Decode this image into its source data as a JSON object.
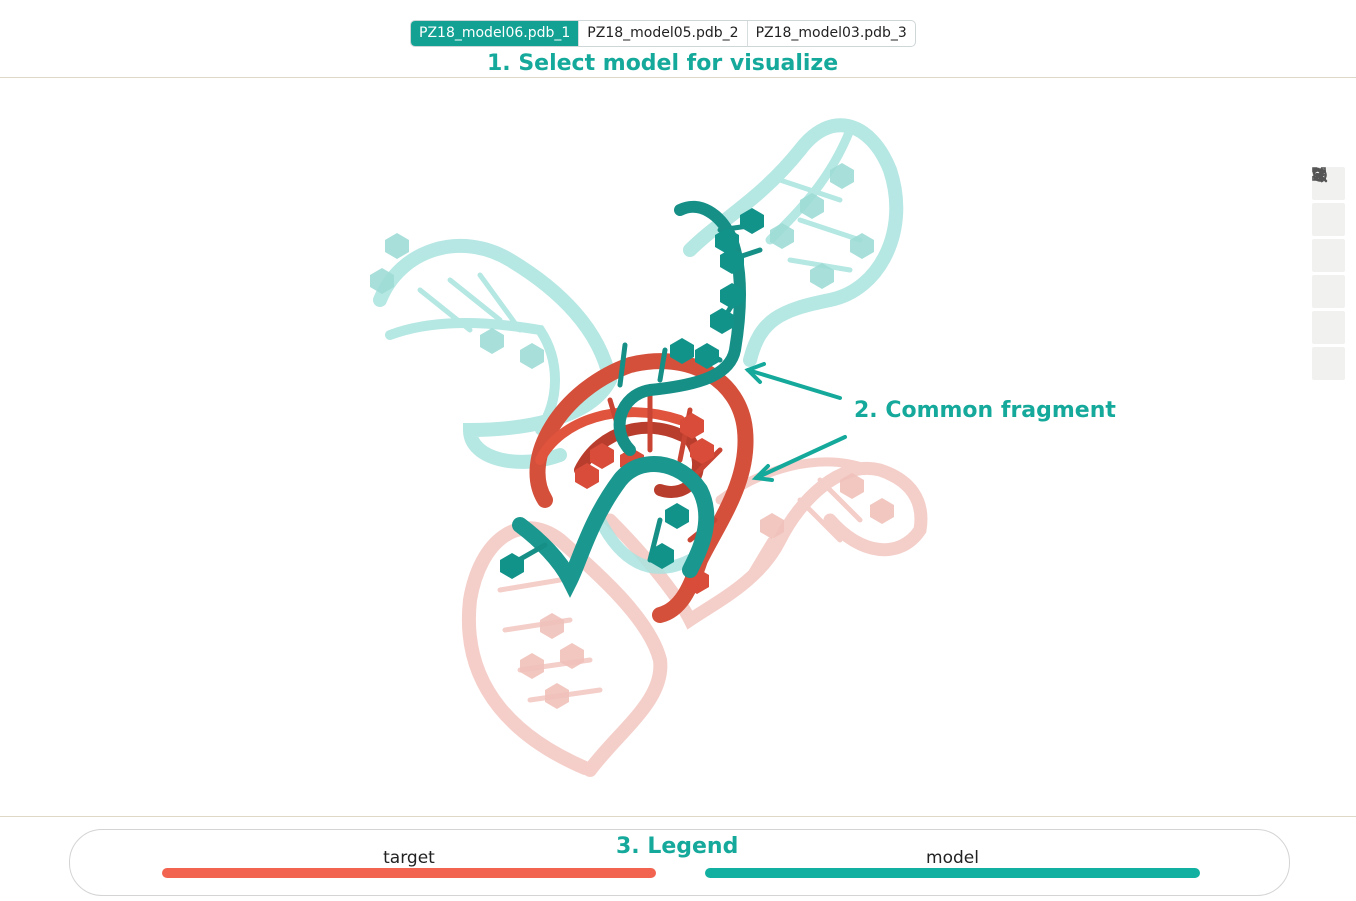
{
  "tabs": [
    {
      "label": "PZ18_model06.pdb_1",
      "active": true
    },
    {
      "label": "PZ18_model05.pdb_2",
      "active": false
    },
    {
      "label": "PZ18_model03.pdb_3",
      "active": false
    }
  ],
  "annotations": {
    "select_model": "1. Select model for visualize",
    "common_fragment": "2. Common fragment",
    "legend": "3. Legend"
  },
  "toolbar": [
    {
      "icon": "refresh-icon"
    },
    {
      "icon": "spin-icon"
    },
    {
      "icon": "wrench-icon"
    },
    {
      "icon": "fullscreen-icon"
    },
    {
      "icon": "sliders-icon"
    },
    {
      "icon": "pointer-icon"
    }
  ],
  "legend": {
    "items": [
      {
        "label": "target",
        "color": "#f26450"
      },
      {
        "label": "model",
        "color": "#12b0a1"
      }
    ]
  },
  "colors": {
    "accent": "#12a193",
    "target": "#e0533d",
    "model": "#168f87",
    "target_faded": "#f3c6c0",
    "model_faded": "#a9e3df"
  }
}
